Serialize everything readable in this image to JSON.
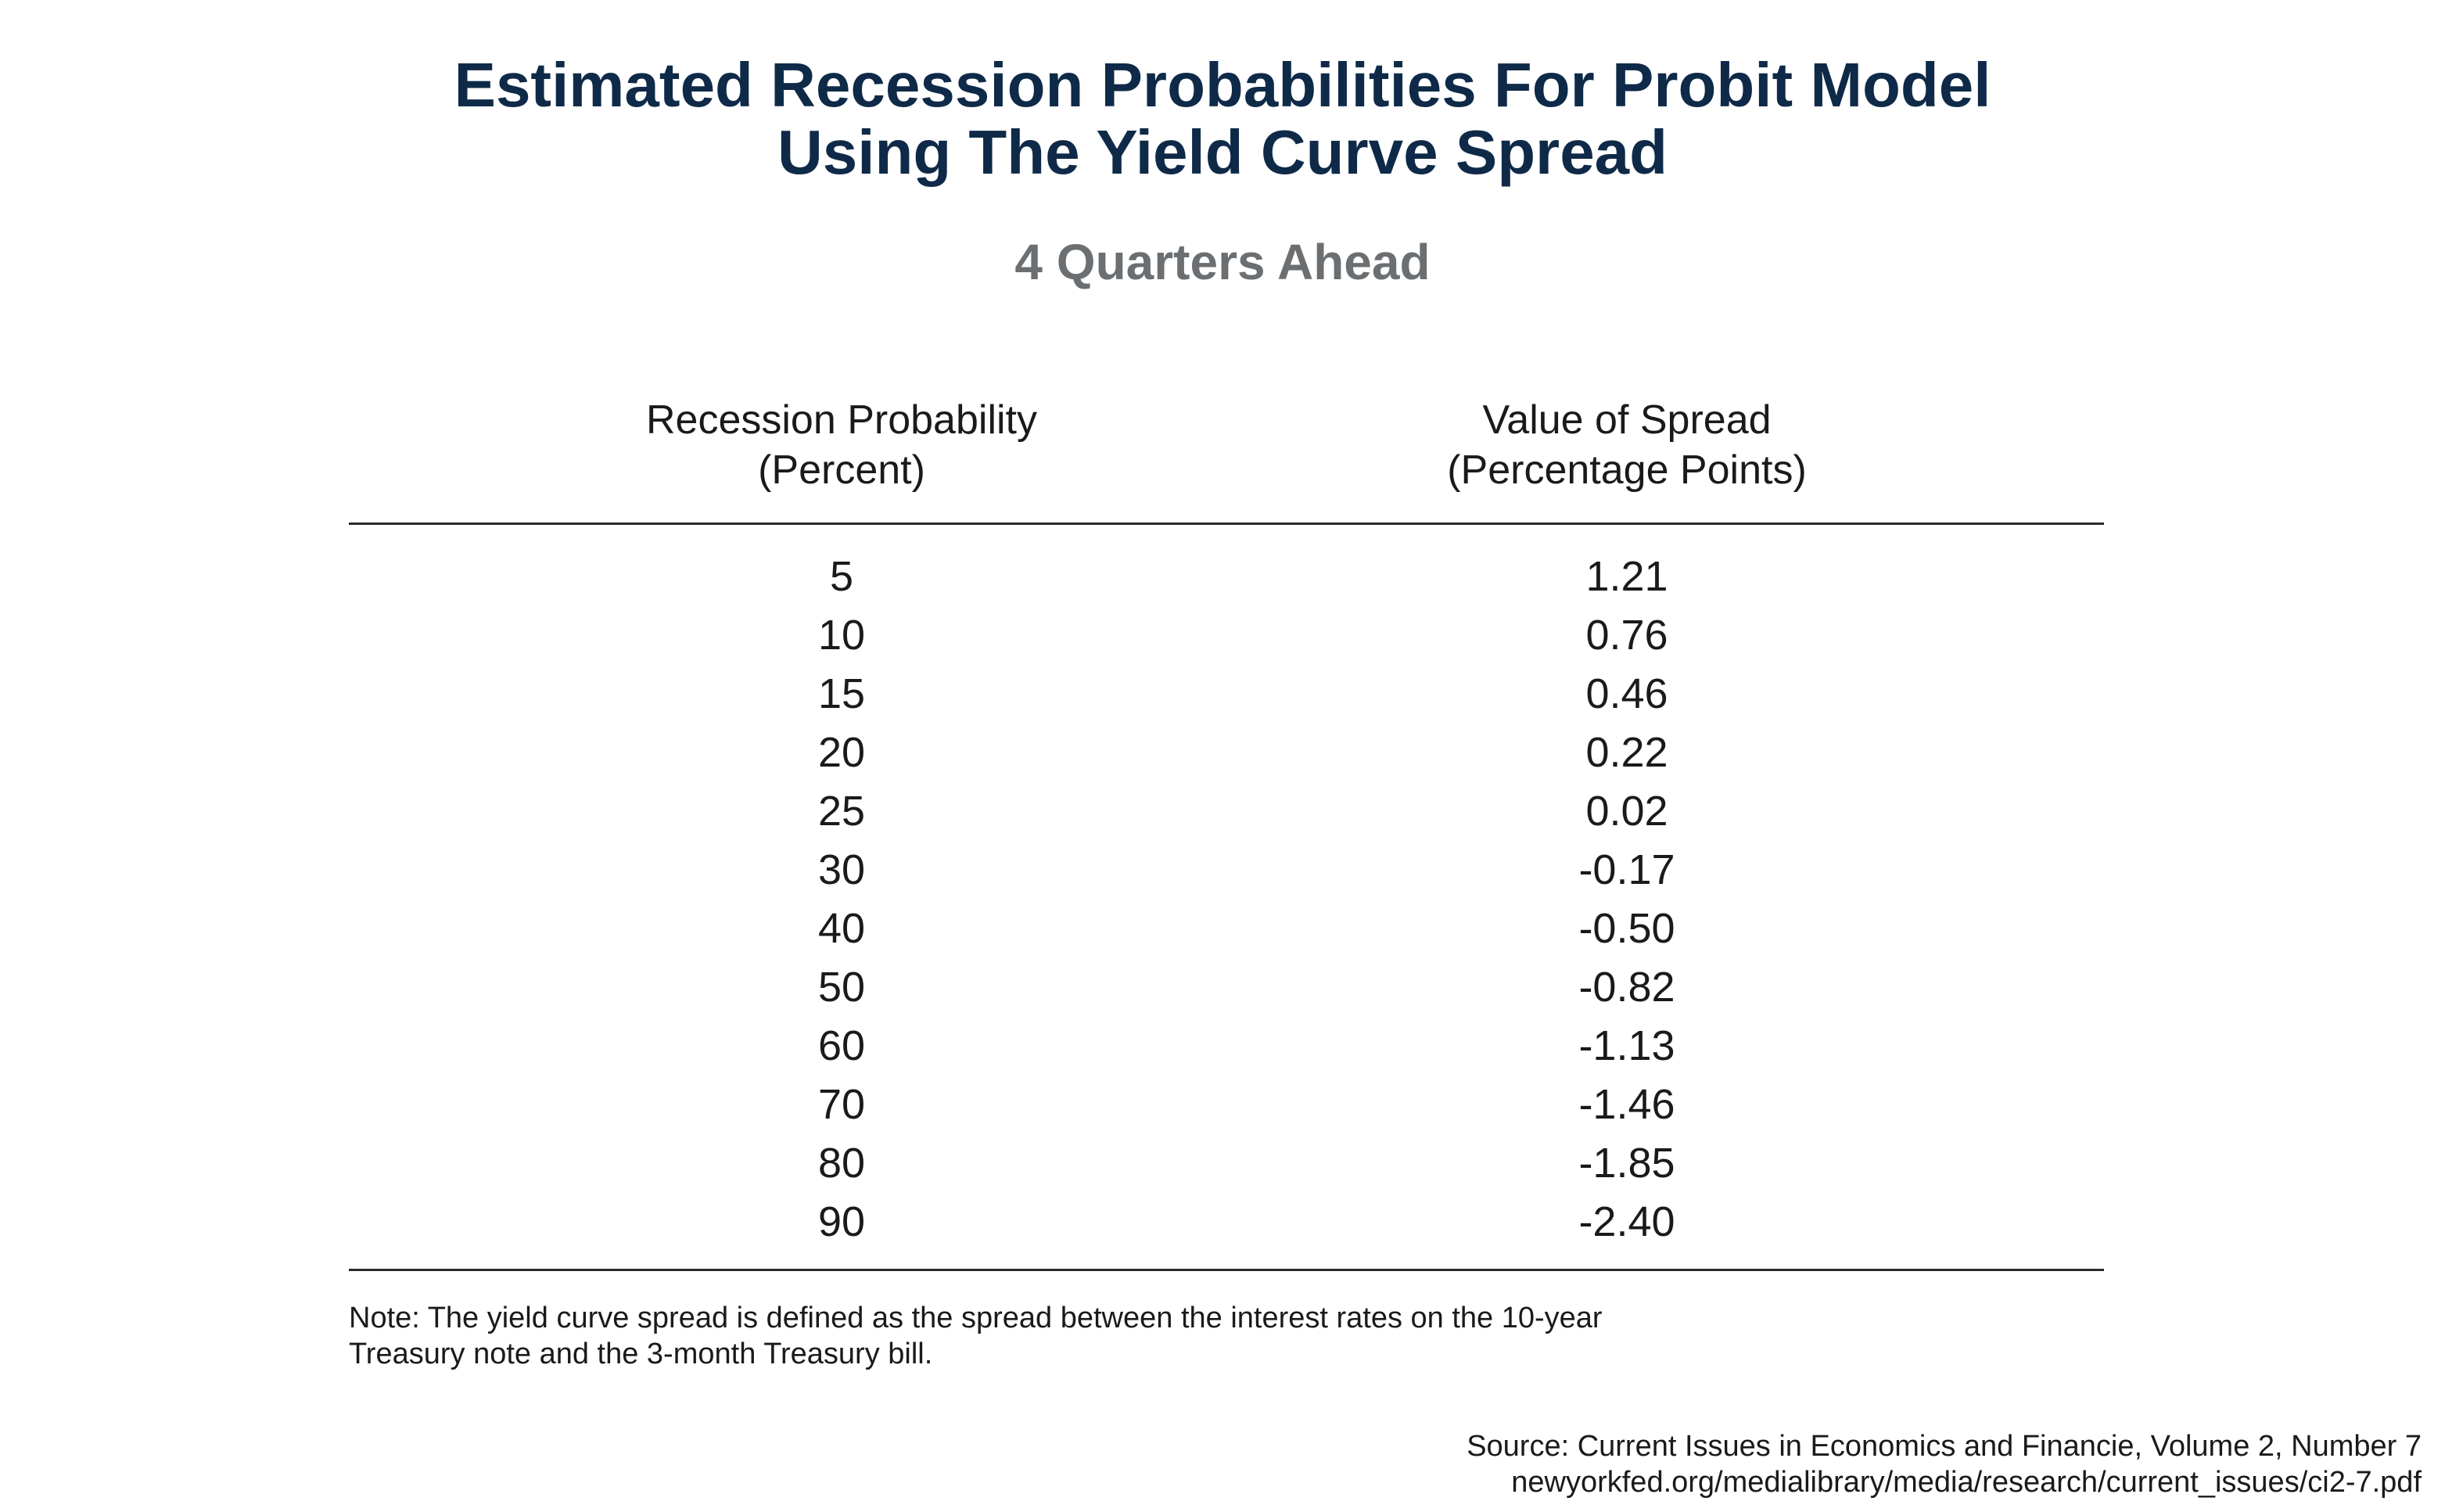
{
  "chart_data": {
    "type": "table",
    "title": "Estimated Recession Probabilities For Probit Model Using The Yield Curve Spread",
    "title_lines": [
      "Estimated Recession Probabilities For Probit Model",
      "Using The Yield Curve Spread"
    ],
    "subtitle": "4 Quarters Ahead",
    "columns": [
      {
        "lines": [
          "Recession Probability",
          "(Percent)"
        ]
      },
      {
        "lines": [
          "Value of Spread",
          "(Percentage Points)"
        ]
      }
    ],
    "rows": [
      {
        "probability": "5",
        "spread": "1.21"
      },
      {
        "probability": "10",
        "spread": "0.76"
      },
      {
        "probability": "15",
        "spread": "0.46"
      },
      {
        "probability": "20",
        "spread": "0.22"
      },
      {
        "probability": "25",
        "spread": "0.02"
      },
      {
        "probability": "30",
        "spread": "-0.17"
      },
      {
        "probability": "40",
        "spread": "-0.50"
      },
      {
        "probability": "50",
        "spread": "-0.82"
      },
      {
        "probability": "60",
        "spread": "-1.13"
      },
      {
        "probability": "70",
        "spread": "-1.46"
      },
      {
        "probability": "80",
        "spread": "-1.85"
      },
      {
        "probability": "90",
        "spread": "-2.40"
      }
    ],
    "note_lines": [
      "Note:  The yield curve spread is defined as the spread between the interest rates on the 10-year",
      "Treasury note and the 3-month Treasury bill."
    ],
    "source_lines": [
      "Source: Current Issues in Economics and Financie, Volume 2, Number 7",
      "newyorkfed.org/medialibrary/media/research/current_issues/ci2-7.pdf"
    ]
  },
  "colors": {
    "title": "#0f2a48",
    "subtitle": "#6c6f72",
    "text": "#1a1a1a",
    "rule": "#2a2a2a",
    "background": "#ffffff"
  }
}
